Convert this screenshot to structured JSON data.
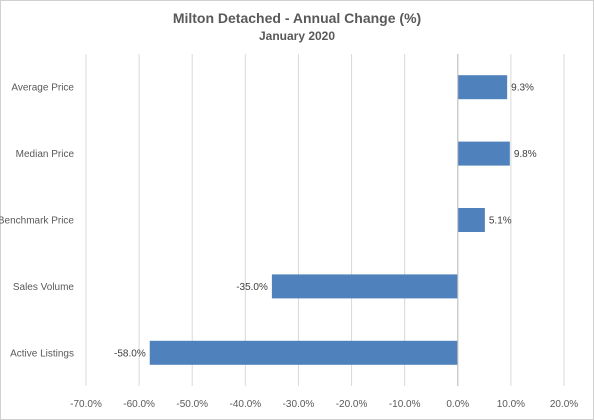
{
  "chart_data": {
    "type": "bar",
    "orientation": "horizontal",
    "title": "Milton Detached - Annual Change (%)",
    "subtitle": "January 2020",
    "categories": [
      "Average Price",
      "Median Price",
      "Benchmark Price",
      "Sales Volume",
      "Active Listings"
    ],
    "values": [
      9.3,
      9.8,
      5.1,
      -35.0,
      -58.0
    ],
    "data_labels": [
      "9.3%",
      "9.8%",
      "5.1%",
      "-35.0%",
      "-58.0%"
    ],
    "xlim": [
      -70,
      20
    ],
    "x_ticks": [
      -70,
      -60,
      -50,
      -40,
      -30,
      -20,
      -10,
      0,
      10,
      20
    ],
    "x_tick_labels": [
      "-70.0%",
      "-60.0%",
      "-50.0%",
      "-40.0%",
      "-30.0%",
      "-20.0%",
      "-10.0%",
      "0.0%",
      "10.0%",
      "20.0%"
    ],
    "grid": "vertical",
    "legend": "none",
    "bar_color": "#4f81bd",
    "grid_color": "#d9d9d9"
  }
}
